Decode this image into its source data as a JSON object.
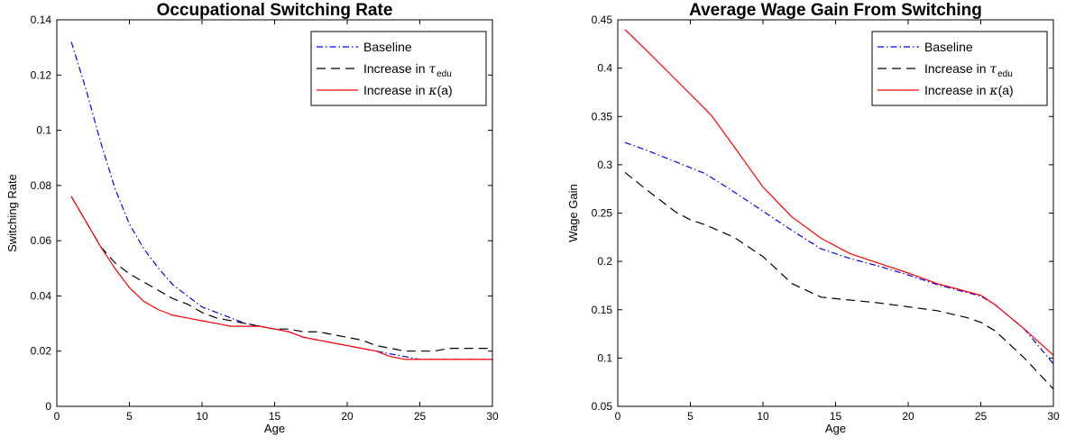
{
  "chart_data": [
    {
      "type": "line",
      "title": "Occupational Switching Rate",
      "xlabel": "Age",
      "ylabel": "Switching Rate",
      "xlim": [
        0,
        30
      ],
      "ylim": [
        0,
        0.14
      ],
      "xticks": [
        0,
        5,
        10,
        15,
        20,
        25,
        30
      ],
      "xtick_labels": [
        "0",
        "5",
        "10",
        "15",
        "20",
        "25",
        "30"
      ],
      "yticks": [
        0,
        0.02,
        0.04,
        0.06,
        0.08,
        0.1,
        0.12,
        0.14
      ],
      "ytick_labels": [
        "0",
        "0.02",
        "0.04",
        "0.06",
        "0.08",
        "0.1",
        "0.12",
        "0.14"
      ],
      "grid": false,
      "legend_position": "top-right",
      "series": [
        {
          "name": "Baseline",
          "color": "#0000ff",
          "dash": "dashdot",
          "x": [
            1,
            2,
            3,
            4,
            5,
            6,
            7,
            8,
            9,
            10,
            11,
            12,
            13,
            14,
            15,
            16,
            17,
            18,
            19,
            20,
            21,
            22,
            23,
            24,
            25,
            26,
            27,
            28,
            29,
            30
          ],
          "y": [
            0.132,
            0.115,
            0.096,
            0.079,
            0.066,
            0.057,
            0.05,
            0.044,
            0.04,
            0.036,
            0.034,
            0.032,
            0.03,
            0.029,
            0.028,
            0.027,
            0.025,
            0.024,
            0.023,
            0.022,
            0.021,
            0.02,
            0.019,
            0.018,
            0.017,
            0.017,
            0.017,
            0.017,
            0.017,
            0.017
          ]
        },
        {
          "name": "Increase in τ",
          "name_sub": "edu",
          "color": "#000000",
          "dash": "dashed",
          "x": [
            1,
            2,
            3,
            4,
            5,
            6,
            7,
            8,
            9,
            10,
            11,
            12,
            13,
            14,
            15,
            16,
            17,
            18,
            19,
            20,
            21,
            22,
            23,
            24,
            25,
            26,
            27,
            28,
            29,
            30
          ],
          "y": [
            0.076,
            0.067,
            0.058,
            0.052,
            0.048,
            0.045,
            0.042,
            0.039,
            0.037,
            0.034,
            0.032,
            0.031,
            0.03,
            0.029,
            0.028,
            0.028,
            0.027,
            0.027,
            0.026,
            0.025,
            0.024,
            0.022,
            0.021,
            0.02,
            0.02,
            0.02,
            0.021,
            0.021,
            0.021,
            0.021
          ]
        },
        {
          "name": "Increase in κ(a)",
          "color": "#ff0000",
          "dash": "solid",
          "x": [
            1,
            2,
            3,
            4,
            5,
            6,
            7,
            8,
            9,
            10,
            11,
            12,
            13,
            14,
            15,
            16,
            17,
            18,
            19,
            20,
            21,
            22,
            23,
            24,
            25,
            26,
            27,
            28,
            29,
            30
          ],
          "y": [
            0.076,
            0.067,
            0.058,
            0.05,
            0.043,
            0.038,
            0.035,
            0.033,
            0.032,
            0.031,
            0.03,
            0.029,
            0.029,
            0.029,
            0.028,
            0.027,
            0.025,
            0.024,
            0.023,
            0.022,
            0.021,
            0.02,
            0.018,
            0.017,
            0.017,
            0.017,
            0.017,
            0.017,
            0.017,
            0.017
          ]
        }
      ]
    },
    {
      "type": "line",
      "title": "Average Wage Gain From Switching",
      "xlabel": "Age",
      "ylabel": "Wage Gain",
      "xlim": [
        0,
        30
      ],
      "ylim": [
        0.05,
        0.45
      ],
      "xticks": [
        0,
        5,
        10,
        15,
        20,
        25,
        30
      ],
      "xtick_labels": [
        "0",
        "5",
        "10",
        "15",
        "20",
        "25",
        "30"
      ],
      "yticks": [
        0.05,
        0.1,
        0.15,
        0.2,
        0.25,
        0.3,
        0.35,
        0.4,
        0.45
      ],
      "ytick_labels": [
        "0.05",
        "0.1",
        "0.15",
        "0.2",
        "0.25",
        "0.3",
        "0.35",
        "0.4",
        "0.45"
      ],
      "grid": false,
      "legend_position": "top-right",
      "series": [
        {
          "name": "Baseline",
          "color": "#0000ff",
          "dash": "dashdot",
          "x": [
            0.5,
            2,
            4,
            6,
            8,
            10,
            12,
            14,
            16,
            18,
            20,
            22,
            24,
            25,
            26,
            28,
            30
          ],
          "y": [
            0.323,
            0.315,
            0.303,
            0.291,
            0.272,
            0.252,
            0.232,
            0.213,
            0.203,
            0.195,
            0.186,
            0.176,
            0.168,
            0.164,
            0.155,
            0.13,
            0.094
          ]
        },
        {
          "name": "Increase in τ",
          "name_sub": "edu",
          "color": "#000000",
          "dash": "dashed",
          "x": [
            0.5,
            2,
            4,
            5,
            6,
            8,
            10,
            12,
            14,
            16,
            18,
            20,
            22,
            24,
            25,
            26,
            28,
            30
          ],
          "y": [
            0.292,
            0.274,
            0.251,
            0.243,
            0.238,
            0.225,
            0.205,
            0.177,
            0.163,
            0.16,
            0.157,
            0.153,
            0.149,
            0.142,
            0.137,
            0.128,
            0.1,
            0.068
          ]
        },
        {
          "name": "Increase in κ(a)",
          "color": "#ff0000",
          "dash": "solid",
          "x": [
            0.5,
            2,
            4,
            6,
            6.5,
            8,
            10,
            12,
            14,
            16,
            18,
            20,
            22,
            24,
            25,
            26,
            28,
            30
          ],
          "y": [
            0.44,
            0.418,
            0.388,
            0.358,
            0.35,
            0.319,
            0.277,
            0.246,
            0.224,
            0.208,
            0.198,
            0.188,
            0.177,
            0.169,
            0.165,
            0.155,
            0.13,
            0.103
          ]
        }
      ]
    }
  ]
}
